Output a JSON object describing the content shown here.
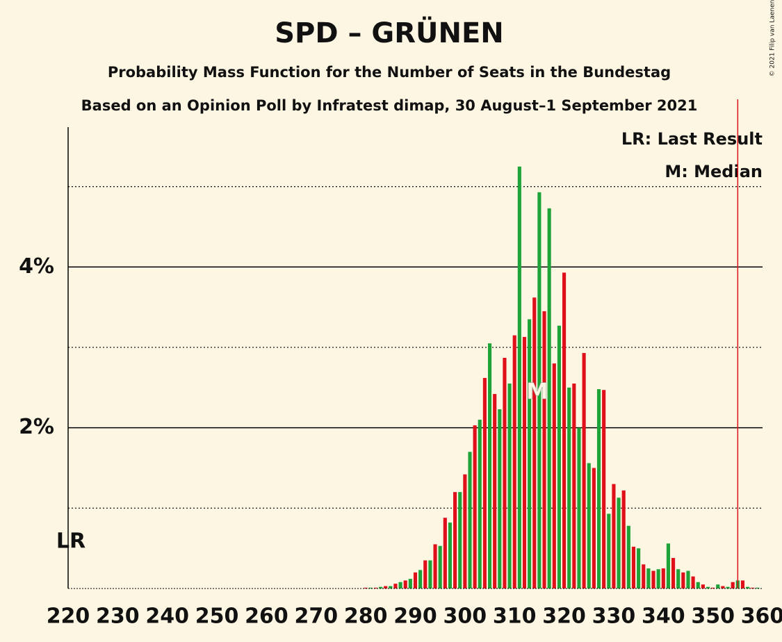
{
  "chart_data": {
    "type": "bar",
    "title": "SPD – GRÜNEN",
    "subtitle": "Probability Mass Function for the Number of Seats in the Bundestag",
    "subtitle2": "Based on an Opinion Poll by Infratest dimap, 30 August–1 September 2021",
    "copyright": "© 2021 Filip van Laenen",
    "legend": [
      "LR: Last Result",
      "M: Median"
    ],
    "last_result": {
      "label": "LR",
      "x": 220
    },
    "median": {
      "label": "M",
      "x": 315
    },
    "majority_line": 355,
    "colors": [
      "#e0101a",
      "#1ea338"
    ],
    "x": [
      220,
      221,
      222,
      223,
      224,
      225,
      226,
      227,
      228,
      229,
      230,
      231,
      232,
      233,
      234,
      235,
      236,
      237,
      238,
      239,
      240,
      241,
      242,
      243,
      244,
      245,
      246,
      247,
      248,
      249,
      250,
      251,
      252,
      253,
      254,
      255,
      256,
      257,
      258,
      259,
      260,
      261,
      262,
      263,
      264,
      265,
      266,
      267,
      268,
      269,
      270,
      271,
      272,
      273,
      274,
      275,
      276,
      277,
      278,
      279,
      280,
      281,
      282,
      283,
      284,
      285,
      286,
      287,
      288,
      289,
      290,
      291,
      292,
      293,
      294,
      295,
      296,
      297,
      298,
      299,
      300,
      301,
      302,
      303,
      304,
      305,
      306,
      307,
      308,
      309,
      310,
      311,
      312,
      313,
      314,
      315,
      316,
      317,
      318,
      319,
      320,
      321,
      322,
      323,
      324,
      325,
      326,
      327,
      328,
      329,
      330,
      331,
      332,
      333,
      334,
      335,
      336,
      337,
      338,
      339,
      340,
      341,
      342,
      343,
      344,
      345,
      346,
      347,
      348,
      349,
      350,
      351,
      352,
      353,
      354,
      355,
      356,
      357,
      358,
      359,
      360
    ],
    "values": [
      0,
      0,
      0,
      0,
      0,
      0,
      0,
      0,
      0,
      0,
      0,
      0,
      0,
      0,
      0,
      0,
      0,
      0,
      0,
      0,
      0,
      0,
      0,
      0,
      0,
      0,
      0,
      0,
      0,
      0,
      0,
      0,
      0,
      0,
      0,
      0,
      0,
      0,
      0,
      0,
      0,
      0,
      0,
      0,
      0,
      0,
      0,
      0,
      0,
      0,
      0,
      0,
      0,
      0,
      0,
      0,
      0,
      0,
      0,
      0,
      0.01,
      0.01,
      0.01,
      0.02,
      0.03,
      0.03,
      0.06,
      0.08,
      0.1,
      0.12,
      0.2,
      0.23,
      0.35,
      0.35,
      0.55,
      0.53,
      0.88,
      0.82,
      1.2,
      1.2,
      1.42,
      1.7,
      2.03,
      2.1,
      2.62,
      3.05,
      2.42,
      2.23,
      2.87,
      2.55,
      3.15,
      5.25,
      3.13,
      3.35,
      3.62,
      4.93,
      3.45,
      4.73,
      2.8,
      3.27,
      3.93,
      2.5,
      2.55,
      2.0,
      2.93,
      1.56,
      1.5,
      2.48,
      2.47,
      0.93,
      1.3,
      1.13,
      1.22,
      0.78,
      0.52,
      0.5,
      0.3,
      0.25,
      0.22,
      0.24,
      0.25,
      0.56,
      0.38,
      0.24,
      0.2,
      0.22,
      0.15,
      0.08,
      0.05,
      0.02,
      0.01,
      0.05,
      0.03,
      0.02,
      0.08,
      0.1,
      0.1,
      0.02,
      0.01,
      0.01,
      0
    ],
    "xlim": [
      220,
      360
    ],
    "xticks": [
      220,
      230,
      240,
      250,
      260,
      270,
      280,
      290,
      300,
      310,
      320,
      330,
      340,
      350,
      360
    ],
    "ylim": [
      0,
      5.74
    ],
    "yticks": [
      {
        "value": 2,
        "label": "2%"
      },
      {
        "value": 4,
        "label": "4%"
      }
    ],
    "minor_gridlines": [
      1,
      3,
      5
    ]
  }
}
